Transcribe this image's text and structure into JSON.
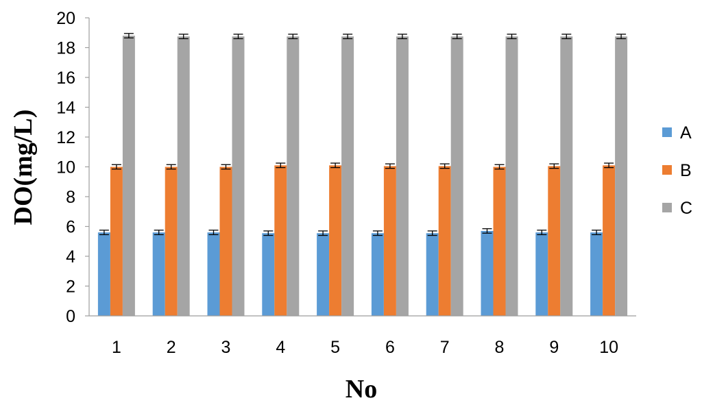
{
  "chart_data": {
    "type": "bar",
    "title": "",
    "xlabel": "No",
    "ylabel": "DO(mg/L)",
    "categories": [
      "1",
      "2",
      "3",
      "4",
      "5",
      "6",
      "7",
      "8",
      "9",
      "10"
    ],
    "ylim": [
      0,
      20
    ],
    "yticks": [
      0,
      2,
      4,
      6,
      8,
      10,
      12,
      14,
      16,
      18,
      20
    ],
    "grid": false,
    "legend_position": "right",
    "series": [
      {
        "name": "A",
        "color": "#5b9bd5",
        "values": [
          5.6,
          5.6,
          5.6,
          5.55,
          5.55,
          5.55,
          5.55,
          5.7,
          5.6,
          5.6
        ],
        "error": [
          0.15,
          0.15,
          0.15,
          0.15,
          0.15,
          0.15,
          0.15,
          0.15,
          0.15,
          0.15
        ]
      },
      {
        "name": "B",
        "color": "#ed7d31",
        "values": [
          10.0,
          10.0,
          10.0,
          10.1,
          10.1,
          10.05,
          10.05,
          10.0,
          10.05,
          10.1
        ],
        "error": [
          0.15,
          0.15,
          0.15,
          0.15,
          0.15,
          0.15,
          0.15,
          0.15,
          0.15,
          0.15
        ]
      },
      {
        "name": "C",
        "color": "#a5a5a5",
        "values": [
          18.8,
          18.75,
          18.75,
          18.75,
          18.75,
          18.75,
          18.75,
          18.75,
          18.75,
          18.75
        ],
        "error": [
          0.15,
          0.15,
          0.15,
          0.15,
          0.15,
          0.15,
          0.15,
          0.15,
          0.15,
          0.15
        ]
      }
    ]
  }
}
